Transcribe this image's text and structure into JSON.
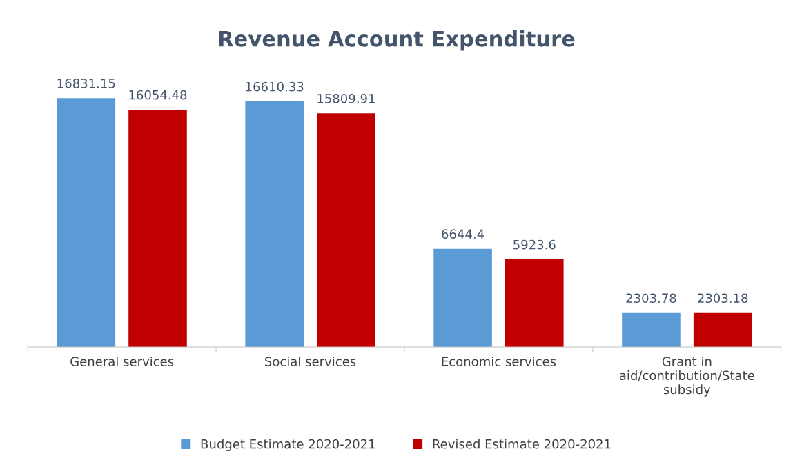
{
  "chart_data": {
    "type": "bar",
    "title": "Revenue Account Expenditure",
    "categories": [
      "General services",
      "Social services",
      "Economic services",
      "Grant in\naid/contribution/State\nsubsidy"
    ],
    "series": [
      {
        "name": "Budget Estimate 2020-2021",
        "color": "#5b9bd5",
        "values": [
          16831.15,
          16610.33,
          6644.4,
          2303.78
        ]
      },
      {
        "name": "Revised Estimate 2020-2021",
        "color": "#c00000",
        "values": [
          16054.48,
          15809.91,
          5923.6,
          2303.18
        ]
      }
    ],
    "data_labels": true,
    "legend": "bottom"
  }
}
